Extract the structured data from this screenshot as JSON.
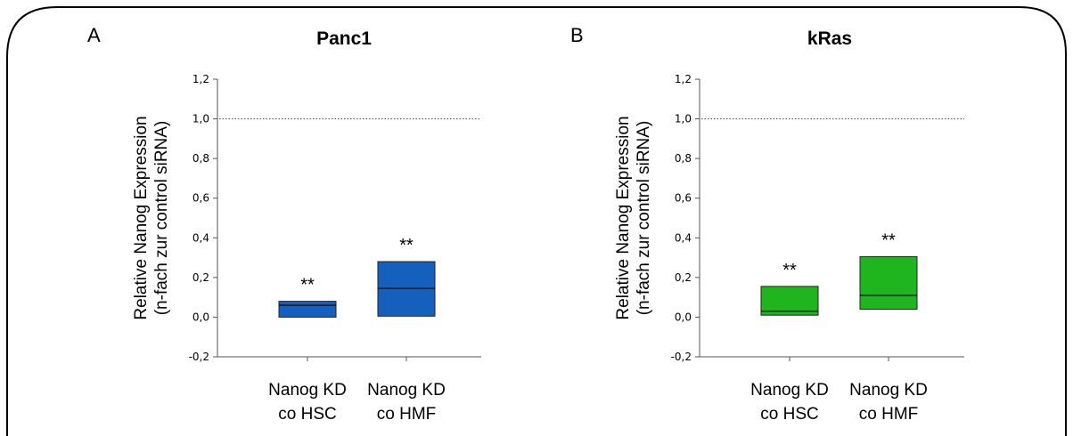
{
  "panels": [
    {
      "letter": "A",
      "title": "Panc1",
      "ylabel_line1": "Relative Nanog Expression",
      "ylabel_line2": "(n-fach zur control siRNA)",
      "yticks": [
        "1,2",
        "1,0",
        "0,8",
        "0,6",
        "0,4",
        "0,2",
        "0,0",
        "-0,2"
      ],
      "categories": [
        {
          "line1": "Nanog KD",
          "line2": "co HSC"
        },
        {
          "line1": "Nanog KD",
          "line2": "co HMF"
        }
      ],
      "significance": [
        "**",
        "**"
      ],
      "color": "#1560bd"
    },
    {
      "letter": "B",
      "title": "kRas",
      "ylabel_line1": "Relative Nanog Expression",
      "ylabel_line2": "(n-fach zur control siRNA)",
      "yticks": [
        "1,2",
        "1,0",
        "0,8",
        "0,6",
        "0,4",
        "0,2",
        "0,0",
        "-0,2"
      ],
      "categories": [
        {
          "line1": "Nanog KD",
          "line2": "co HSC"
        },
        {
          "line1": "Nanog KD",
          "line2": "co HMF"
        }
      ],
      "significance": [
        "**",
        "**"
      ],
      "color": "#1fb51f"
    }
  ],
  "chart_data": [
    {
      "type": "box",
      "title": "Panc1",
      "ylabel": "Relative Nanog Expression (n-fach zur control siRNA)",
      "categories": [
        "Nanog KD co HSC",
        "Nanog KD co HMF"
      ],
      "boxes": [
        {
          "q1": 0.0,
          "median": 0.06,
          "q3": 0.08
        },
        {
          "q1": 0.005,
          "median": 0.145,
          "q3": 0.28
        }
      ],
      "reference_line": 1.0,
      "ylim": [
        -0.2,
        1.2
      ],
      "grid": false
    },
    {
      "type": "box",
      "title": "kRas",
      "ylabel": "Relative Nanog Expression (n-fach zur control siRNA)",
      "categories": [
        "Nanog KD co HSC",
        "Nanog KD co HMF"
      ],
      "boxes": [
        {
          "q1": 0.01,
          "median": 0.03,
          "q3": 0.155
        },
        {
          "q1": 0.04,
          "median": 0.11,
          "q3": 0.305
        }
      ],
      "reference_line": 1.0,
      "ylim": [
        -0.2,
        1.2
      ],
      "grid": false
    }
  ]
}
